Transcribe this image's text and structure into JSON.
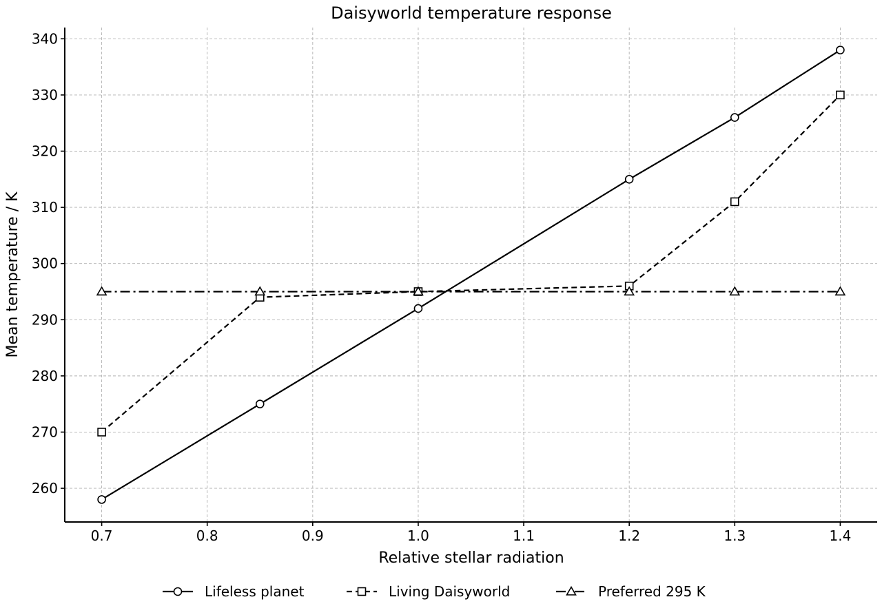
{
  "chart_data": {
    "type": "line",
    "title": "Daisyworld temperature response",
    "xlabel": "Relative stellar radiation",
    "ylabel": "Mean temperature / K",
    "x": [
      0.7,
      0.85,
      1.0,
      1.2,
      1.3,
      1.4
    ],
    "xlim": [
      0.665,
      1.435
    ],
    "ylim": [
      254,
      342
    ],
    "xticks": [
      0.7,
      0.8,
      0.9,
      1.0,
      1.1,
      1.2,
      1.3,
      1.4
    ],
    "xtick_labels": [
      "0.7",
      "0.8",
      "0.9",
      "1.0",
      "1.1",
      "1.2",
      "1.3",
      "1.4"
    ],
    "yticks": [
      260,
      270,
      280,
      290,
      300,
      310,
      320,
      330,
      340
    ],
    "ytick_labels": [
      "260",
      "270",
      "280",
      "290",
      "300",
      "310",
      "320",
      "330",
      "340"
    ],
    "grid": true,
    "legend_position": "bottom-center",
    "series": [
      {
        "name": "Lifeless planet",
        "values": [
          258,
          275,
          292,
          315,
          326,
          338
        ],
        "marker": "circle",
        "line_style": "solid",
        "color": "#000000"
      },
      {
        "name": "Living Daisyworld",
        "values": [
          270,
          294,
          295,
          296,
          311,
          330
        ],
        "marker": "square",
        "line_style": "dashed",
        "color": "#000000"
      },
      {
        "name": "Preferred 295 K",
        "values": [
          295,
          295,
          295,
          295,
          295,
          295
        ],
        "marker": "triangle",
        "line_style": "dashdot",
        "color": "#000000"
      }
    ]
  }
}
